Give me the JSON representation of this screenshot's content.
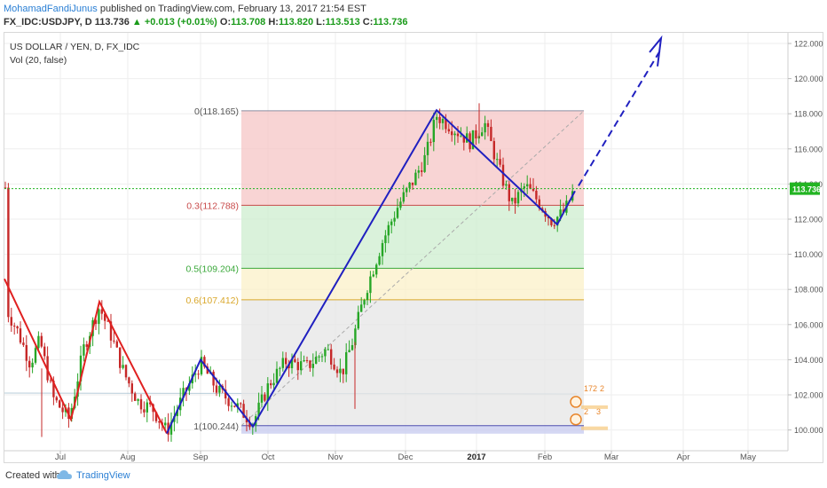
{
  "header": {
    "author": "MohamadFandiJunus",
    "published_text": "published on TradingView.com, February 13, 2017 21:54 EST",
    "symbol": "FX_IDC:USDJPY, D",
    "last": "113.736",
    "change": "+0.013 (+0.01%)",
    "o_label": "O:",
    "o_value": "113.708",
    "h_label": "H:",
    "h_value": "113.820",
    "l_label": "L:",
    "l_value": "113.513",
    "c_label": "C:",
    "c_value": "113.736"
  },
  "legend": {
    "title": "US DOLLAR / YEN, D, FX_IDC",
    "indicator": "Vol (20, false)"
  },
  "chart_data": {
    "type": "candlestick",
    "ylim": [
      99.4,
      122.4
    ],
    "yticks": [
      "122.000",
      "120.000",
      "118.000",
      "116.000",
      "114.000",
      "112.000",
      "110.000",
      "108.000",
      "106.000",
      "104.000",
      "102.000",
      "100.000"
    ],
    "xticks": [
      "Jul",
      "Aug",
      "Sep",
      "Oct",
      "Nov",
      "Dec",
      "2017",
      "Feb",
      "Mar",
      "Apr",
      "May"
    ],
    "current_price": "113.736",
    "fib_levels": [
      {
        "label": "0(118.165)",
        "value": 118.165
      },
      {
        "label": "0.3(112.788)",
        "value": 112.788
      },
      {
        "label": "0.5(109.204)",
        "value": 109.204
      },
      {
        "label": "0.6(107.412)",
        "value": 107.412
      },
      {
        "label": "1(100.244)",
        "value": 100.244
      }
    ],
    "event_badges": [
      "172",
      "2",
      "2",
      "3"
    ],
    "colors": {
      "up": "#26a626",
      "down": "#c62828",
      "fib_red": "#f5c6c6",
      "fib_green": "#cdeecf",
      "fib_yellow": "#fbf0c8",
      "fib_gray": "#e6e6e6",
      "fib_blue": "#c9cdf0",
      "trend_red": "#e02020",
      "trend_blue": "#2020c0",
      "price_line": "#22b422"
    }
  },
  "footer": {
    "created": "Created with",
    "brand": "TradingView"
  }
}
